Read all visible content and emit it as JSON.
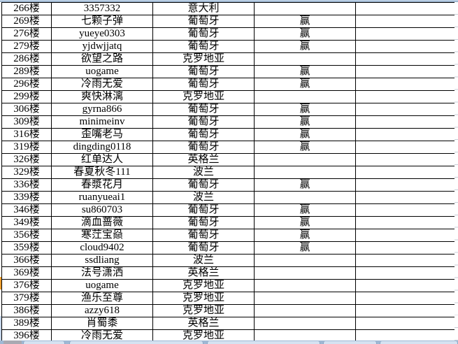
{
  "app": {
    "kind": "spreadsheet-grid",
    "visible_columns": [
      "floor",
      "username",
      "team",
      "result",
      "blank"
    ]
  },
  "colors": {
    "grid_border": "#000000",
    "cell_background": "#ffffff",
    "text": "#000000",
    "top_strip": "#b9cee4",
    "bottom_bar": "#9fb8d4",
    "bottom_bar_segment": "#d5e2f1",
    "bottom_gray_block": "#a9a9b2",
    "left_marker_orange": "#f0a030",
    "left_marker_blue": "#c6d6ea",
    "sliver_gridline": "#c9cfd8"
  },
  "table": {
    "rows": [
      {
        "floor": "266楼",
        "username": "3357332",
        "team": "意大利",
        "result": "",
        "blank": ""
      },
      {
        "floor": "269楼",
        "username": "七颗子弹",
        "team": "葡萄牙",
        "result": "赢",
        "blank": ""
      },
      {
        "floor": "276楼",
        "username": "yueye0303",
        "team": "葡萄牙",
        "result": "赢",
        "blank": ""
      },
      {
        "floor": "279楼",
        "username": "yjdwjjatq",
        "team": "葡萄牙",
        "result": "赢",
        "blank": ""
      },
      {
        "floor": "286楼",
        "username": "欲望之路",
        "team": "克罗地亚",
        "result": "",
        "blank": ""
      },
      {
        "floor": "289楼",
        "username": "uogame",
        "team": "葡萄牙",
        "result": "赢",
        "blank": ""
      },
      {
        "floor": "296楼",
        "username": "冷雨无爱",
        "team": "葡萄牙",
        "result": "赢",
        "blank": ""
      },
      {
        "floor": "299楼",
        "username": "爽快淋漓",
        "team": "克罗地亚",
        "result": "",
        "blank": ""
      },
      {
        "floor": "306楼",
        "username": "gyrna866",
        "team": "葡萄牙",
        "result": "赢",
        "blank": ""
      },
      {
        "floor": "309楼",
        "username": "minimeinv",
        "team": "葡萄牙",
        "result": "赢",
        "blank": ""
      },
      {
        "floor": "316楼",
        "username": "歪嘴老马",
        "team": "葡萄牙",
        "result": "赢",
        "blank": ""
      },
      {
        "floor": "319楼",
        "username": "dingding0118",
        "team": "葡萄牙",
        "result": "赢",
        "blank": ""
      },
      {
        "floor": "326楼",
        "username": "红单达人",
        "team": "英格兰",
        "result": "",
        "blank": ""
      },
      {
        "floor": "329楼",
        "username": "春夏秋冬111",
        "team": "波兰",
        "result": "",
        "blank": ""
      },
      {
        "floor": "336楼",
        "username": "春漿花月",
        "team": "葡萄牙",
        "result": "赢",
        "blank": ""
      },
      {
        "floor": "339楼",
        "username": "ruanyueai1",
        "team": "波兰",
        "result": "",
        "blank": ""
      },
      {
        "floor": "346楼",
        "username": "su860703",
        "team": "葡萄牙",
        "result": "赢",
        "blank": ""
      },
      {
        "floor": "349楼",
        "username": "滴血蔷薇",
        "team": "葡萄牙",
        "result": "赢",
        "blank": ""
      },
      {
        "floor": "356楼",
        "username": "寒茳宝赑",
        "team": "葡萄牙",
        "result": "赢",
        "blank": ""
      },
      {
        "floor": "359楼",
        "username": "cloud9402",
        "team": "葡萄牙",
        "result": "赢",
        "blank": ""
      },
      {
        "floor": "366楼",
        "username": "ssdliang",
        "team": "波兰",
        "result": "",
        "blank": ""
      },
      {
        "floor": "369楼",
        "username": "法号潇洒",
        "team": "英格兰",
        "result": "",
        "blank": ""
      },
      {
        "floor": "376楼",
        "username": "uogame",
        "team": "克罗地亚",
        "result": "",
        "blank": ""
      },
      {
        "floor": "379楼",
        "username": "渔乐至尊",
        "team": "克罗地亚",
        "result": "",
        "blank": ""
      },
      {
        "floor": "386楼",
        "username": "azzy618",
        "team": "克罗地亚",
        "result": "",
        "blank": ""
      },
      {
        "floor": "389楼",
        "username": "肖蜀黍",
        "team": "英格兰",
        "result": "",
        "blank": ""
      },
      {
        "floor": "396楼",
        "username": "冷雨无爱",
        "team": "克罗地亚",
        "result": "",
        "blank": ""
      }
    ]
  }
}
